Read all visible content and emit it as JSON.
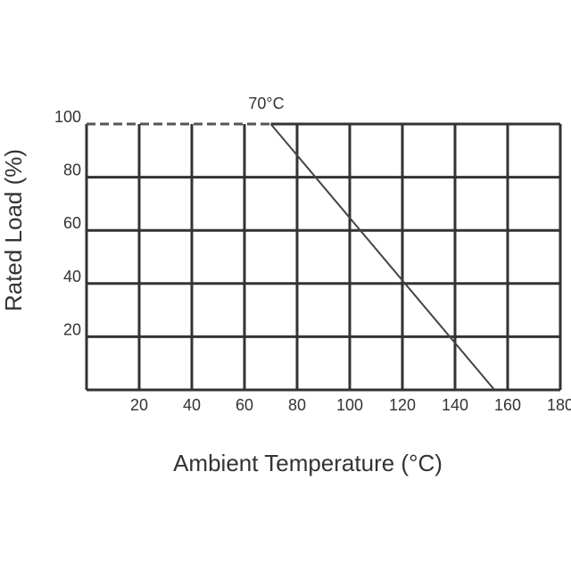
{
  "chart_data": {
    "type": "line",
    "title": "",
    "xlabel": "Ambient Temperature (°C)",
    "ylabel": "Rated Load (%)",
    "xlim": [
      0,
      180
    ],
    "ylim": [
      0,
      100
    ],
    "x_ticks": [
      20,
      40,
      60,
      80,
      100,
      120,
      140,
      160,
      180
    ],
    "y_ticks": [
      20,
      40,
      60,
      80,
      100
    ],
    "grid": true,
    "series": [
      {
        "style": "dashed",
        "x": [
          0,
          70
        ],
        "y": [
          100,
          100
        ]
      },
      {
        "style": "solid",
        "x": [
          70,
          155
        ],
        "y": [
          100,
          0
        ]
      }
    ],
    "annotations": [
      {
        "text": "70°C",
        "x": 70,
        "y": 100
      }
    ],
    "colors": {
      "grid": "#333333",
      "line": "#444444"
    }
  }
}
